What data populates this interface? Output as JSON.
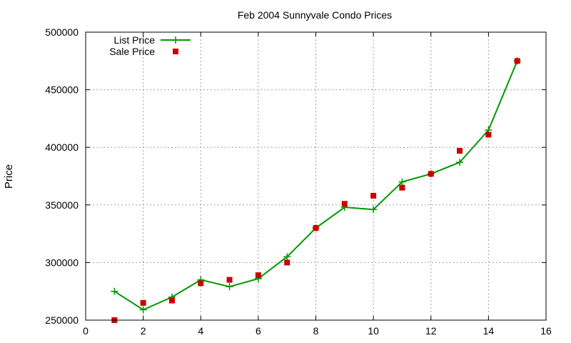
{
  "chart_data": {
    "type": "line",
    "title": "Feb 2004 Sunnyvale Condo Prices",
    "xlabel": "",
    "ylabel": "Price",
    "xlim": [
      0,
      16
    ],
    "ylim": [
      250000,
      500000
    ],
    "x_ticks": [
      0,
      2,
      4,
      6,
      8,
      10,
      12,
      14,
      16
    ],
    "y_ticks": [
      250000,
      300000,
      350000,
      400000,
      450000,
      500000
    ],
    "grid": true,
    "legend_position": "top-left",
    "series": [
      {
        "name": "List Price",
        "style": "line-with-plus-markers",
        "color": "#009900",
        "x": [
          1,
          2,
          3,
          4,
          5,
          6,
          7,
          8,
          9,
          10,
          11,
          12,
          13,
          14,
          15
        ],
        "y": [
          275000,
          259000,
          270000,
          285000,
          279000,
          286000,
          305000,
          330000,
          348000,
          346000,
          370000,
          377000,
          387000,
          415000,
          475000
        ]
      },
      {
        "name": "Sale Price",
        "style": "square-markers",
        "color": "#cc0000",
        "x": [
          1,
          2,
          3,
          4,
          5,
          6,
          7,
          8,
          9,
          10,
          11,
          12,
          13,
          14,
          15
        ],
        "y": [
          250000,
          265000,
          267000,
          282000,
          285000,
          289000,
          300000,
          330000,
          351000,
          358000,
          365000,
          377000,
          397000,
          411000,
          475000
        ]
      }
    ]
  }
}
